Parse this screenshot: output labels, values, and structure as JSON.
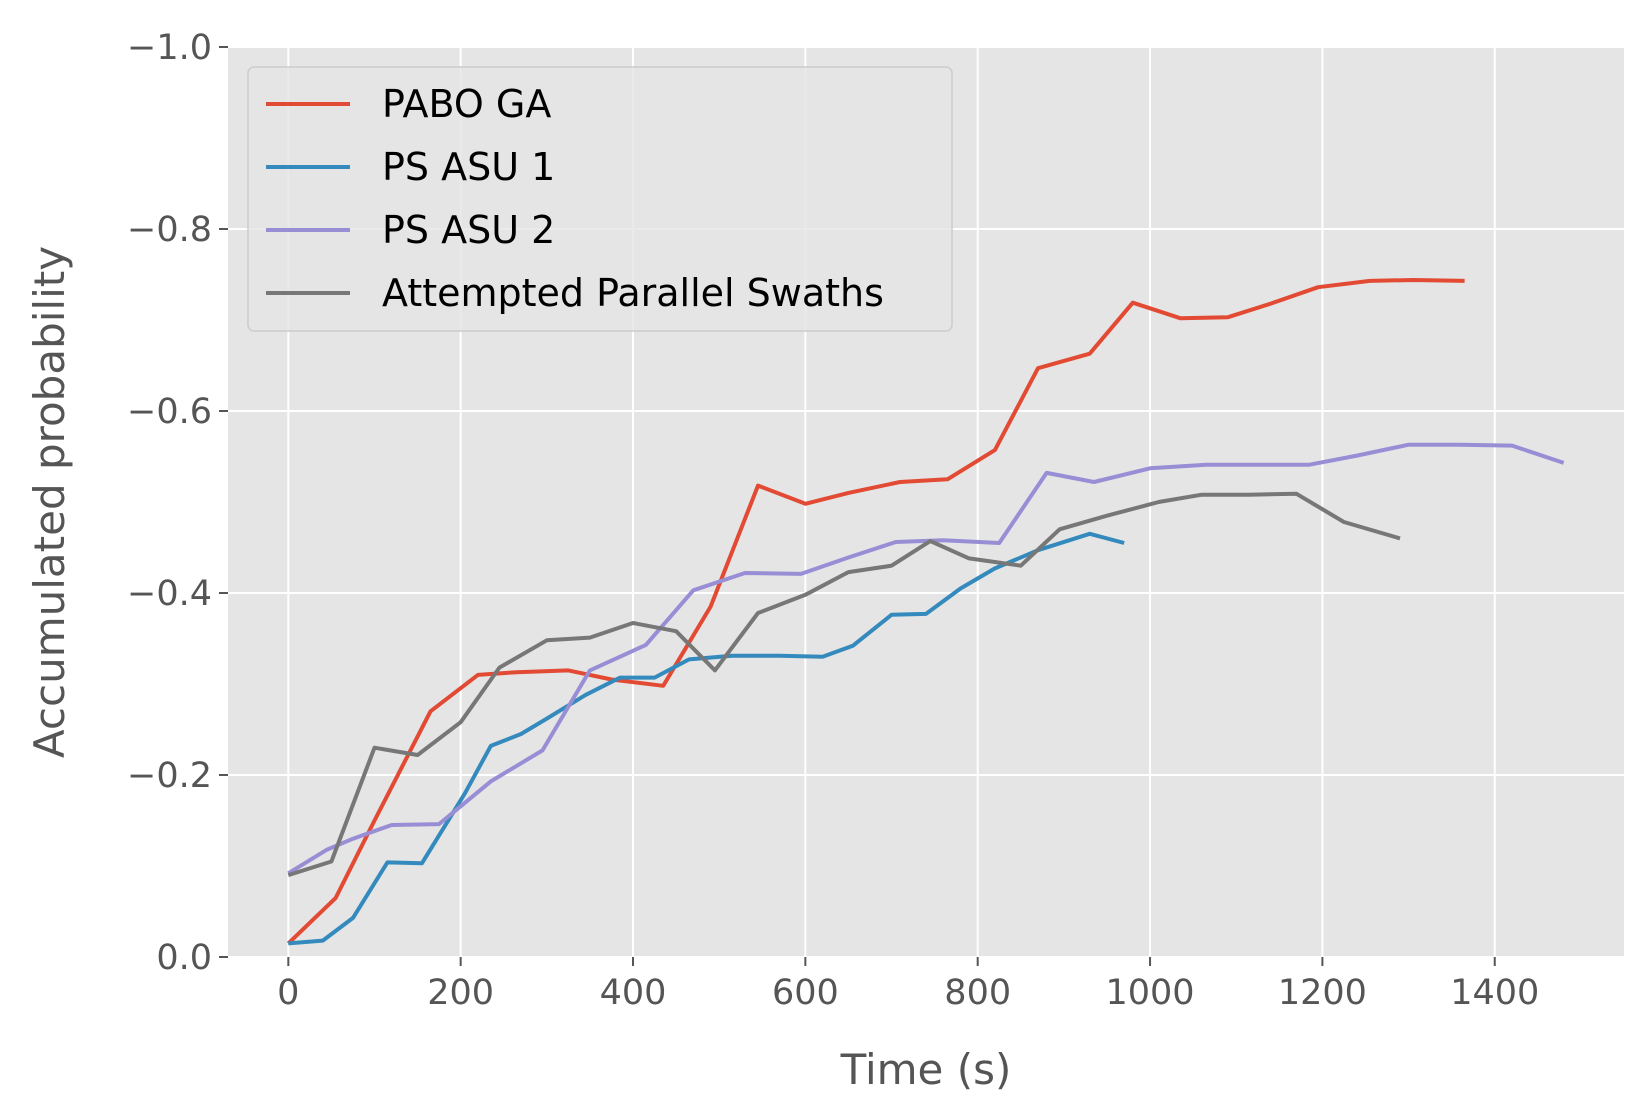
{
  "chart_data": {
    "type": "line",
    "xlabel": "Time (s)",
    "ylabel": "Accumulated probability",
    "xlim": [
      -70,
      1550
    ],
    "ylim": [
      0.0,
      -1.0
    ],
    "y_axis_inverted": true,
    "xticks": [
      0,
      200,
      400,
      600,
      800,
      1000,
      1200,
      1400
    ],
    "xtick_labels": [
      "0",
      "200",
      "400",
      "600",
      "800",
      "1000",
      "1200",
      "1400"
    ],
    "yticks": [
      0.0,
      -0.2,
      -0.4,
      -0.6,
      -0.8,
      -1.0
    ],
    "ytick_labels": [
      "0.0",
      "−0.2",
      "−0.4",
      "−0.6",
      "−0.8",
      "−1.0"
    ],
    "grid": true,
    "legend_position": "top-left",
    "style": {
      "background": "#e5e5e5",
      "grid_color": "#ffffff"
    },
    "series": [
      {
        "name": "PABO GA",
        "color": "#e24a33",
        "x": [
          0,
          55,
          100,
          165,
          220,
          265,
          325,
          375,
          435,
          490,
          545,
          600,
          650,
          710,
          765,
          820,
          870,
          930,
          980,
          1035,
          1090,
          1140,
          1195,
          1255,
          1305,
          1365
        ],
        "y": [
          -0.015,
          -0.065,
          -0.15,
          -0.27,
          -0.31,
          -0.313,
          -0.315,
          -0.305,
          -0.298,
          -0.385,
          -0.518,
          -0.498,
          -0.51,
          -0.522,
          -0.525,
          -0.557,
          -0.647,
          -0.663,
          -0.719,
          -0.702,
          -0.703,
          -0.718,
          -0.736,
          -0.743,
          -0.744,
          -0.743
        ]
      },
      {
        "name": "PS ASU 1",
        "color": "#348abd",
        "x": [
          0,
          40,
          75,
          115,
          155,
          205,
          235,
          270,
          300,
          345,
          385,
          425,
          465,
          515,
          570,
          620,
          655,
          700,
          740,
          780,
          820,
          870,
          930,
          970
        ],
        "y": [
          -0.015,
          -0.018,
          -0.043,
          -0.104,
          -0.103,
          -0.18,
          -0.232,
          -0.245,
          -0.262,
          -0.288,
          -0.307,
          -0.307,
          -0.327,
          -0.331,
          -0.331,
          -0.33,
          -0.342,
          -0.376,
          -0.377,
          -0.405,
          -0.427,
          -0.447,
          -0.465,
          -0.455
        ]
      },
      {
        "name": "PS ASU 2",
        "color": "#988ed5",
        "x": [
          0,
          45,
          75,
          120,
          175,
          235,
          295,
          350,
          415,
          470,
          530,
          595,
          650,
          705,
          760,
          825,
          880,
          935,
          1000,
          1065,
          1120,
          1185,
          1240,
          1300,
          1360,
          1420,
          1480
        ],
        "y": [
          -0.092,
          -0.118,
          -0.13,
          -0.145,
          -0.146,
          -0.193,
          -0.227,
          -0.315,
          -0.343,
          -0.403,
          -0.422,
          -0.421,
          -0.439,
          -0.456,
          -0.458,
          -0.455,
          -0.532,
          -0.522,
          -0.537,
          -0.541,
          -0.541,
          -0.541,
          -0.551,
          -0.563,
          -0.563,
          -0.562,
          -0.543
        ]
      },
      {
        "name": "Attempted Parallel Swaths",
        "color": "#777777",
        "x": [
          0,
          50,
          100,
          150,
          200,
          245,
          300,
          350,
          400,
          450,
          495,
          545,
          600,
          650,
          700,
          745,
          790,
          850,
          895,
          950,
          1010,
          1060,
          1115,
          1170,
          1225,
          1290
        ],
        "y": [
          -0.09,
          -0.105,
          -0.23,
          -0.222,
          -0.258,
          -0.318,
          -0.348,
          -0.351,
          -0.367,
          -0.358,
          -0.315,
          -0.378,
          -0.398,
          -0.423,
          -0.43,
          -0.457,
          -0.438,
          -0.43,
          -0.47,
          -0.485,
          -0.5,
          -0.508,
          -0.508,
          -0.509,
          -0.478,
          -0.46
        ]
      }
    ]
  }
}
